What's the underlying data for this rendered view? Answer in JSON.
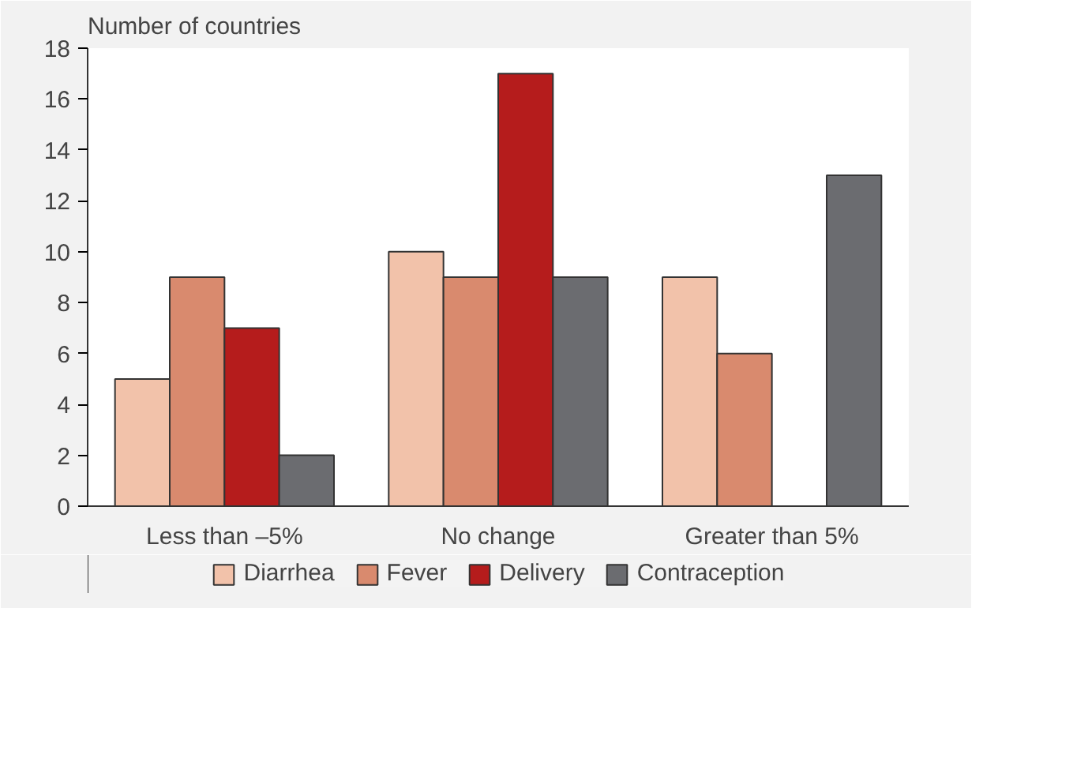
{
  "chart_data": {
    "type": "bar",
    "ylabel": "Number of countries",
    "categories": [
      "Less than –5%",
      "No change",
      "Greater than 5%"
    ],
    "series": [
      {
        "name": "Diarrhea",
        "color": "#f2c2aa",
        "values": [
          5,
          10,
          9
        ]
      },
      {
        "name": "Fever",
        "color": "#d98a6e",
        "values": [
          9,
          9,
          6
        ]
      },
      {
        "name": "Delivery",
        "color": "#b51c1c",
        "values": [
          7,
          17,
          null
        ]
      },
      {
        "name": "Contraception",
        "color": "#6b6c70",
        "values": [
          2,
          9,
          13
        ]
      }
    ],
    "ylim": [
      0,
      18
    ],
    "yticks": [
      0,
      2,
      4,
      6,
      8,
      10,
      12,
      14,
      16,
      18
    ],
    "grid": false,
    "legend": "bottom"
  }
}
